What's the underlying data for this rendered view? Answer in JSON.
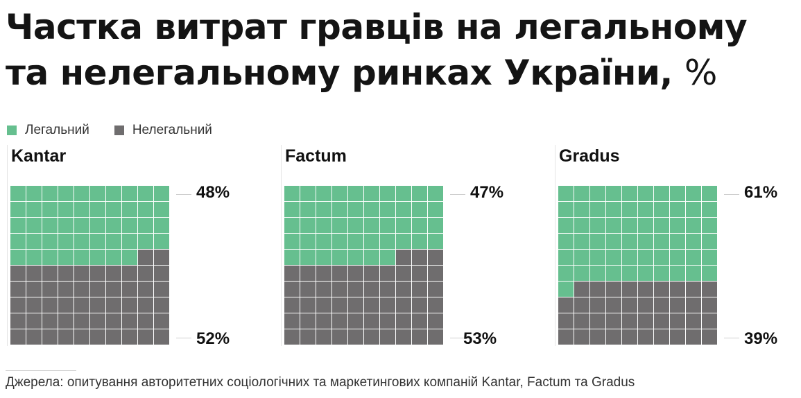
{
  "title_line1": "Частка витрат гравців на легальному",
  "title_line2": "та нелегальному ринках України,",
  "title_unit": "%",
  "legend": [
    {
      "label": "Легальний",
      "color": "#66bf8f"
    },
    {
      "label": "Нелегальний",
      "color": "#6f6d6e"
    }
  ],
  "source": "Джерела: опитування авторитетних соціологічних та маркетингових компаній Kantar, Factum та Gradus",
  "chart_data": [
    {
      "type": "waffle",
      "title": "Kantar",
      "series": [
        {
          "name": "Легальний",
          "value": 48,
          "label": "48%"
        },
        {
          "name": "Нелегальний",
          "value": 52,
          "label": "52%"
        }
      ]
    },
    {
      "type": "waffle",
      "title": "Factum",
      "series": [
        {
          "name": "Легальний",
          "value": 47,
          "label": "47%"
        },
        {
          "name": "Нелегальний",
          "value": 53,
          "label": "53%"
        }
      ]
    },
    {
      "type": "waffle",
      "title": "Gradus",
      "series": [
        {
          "name": "Легальний",
          "value": 61,
          "label": "61%"
        },
        {
          "name": "Нелегальний",
          "value": 39,
          "label": "39%"
        }
      ]
    }
  ]
}
